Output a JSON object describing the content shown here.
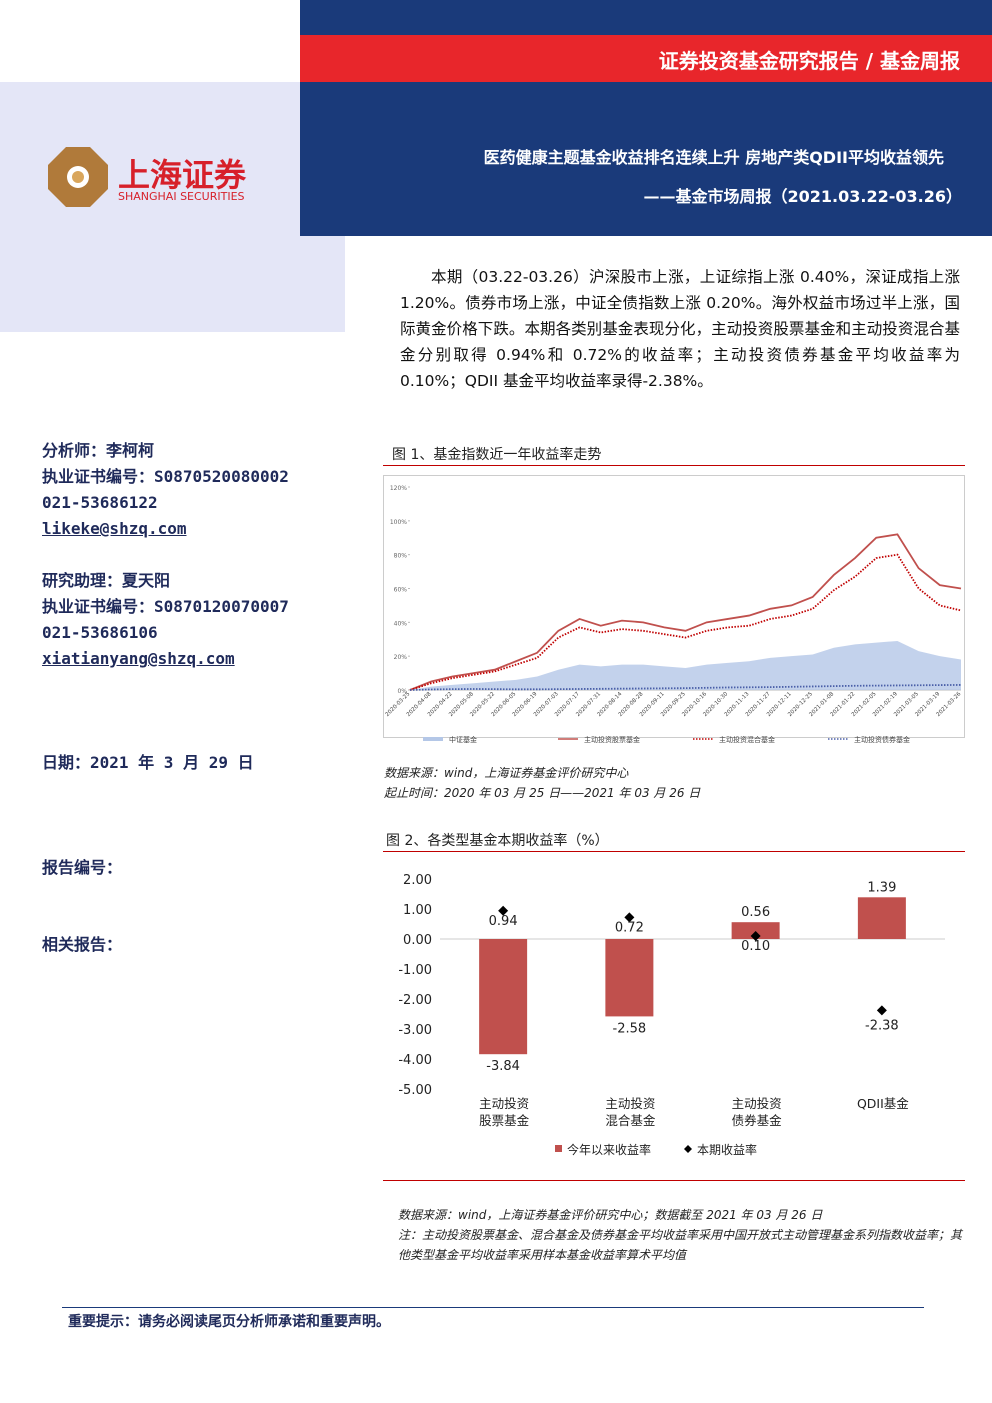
{
  "header": {
    "series_title": "证券投资基金研究报告 / 基金周报",
    "title": "医药健康主题基金收益排名连续上升 房地产类QDII平均收益领先",
    "subtitle": "——基金市场周报（2021.03.22-03.26）",
    "logo_cn": "上海证券",
    "logo_en": "SHANGHAI SECURITIES"
  },
  "sidebar": {
    "analyst": "分析师：李柯柯",
    "analyst_cert": "执业证书编号：S0870520080002",
    "analyst_phone": "021-53686122",
    "analyst_email": "likeke@shzq.com",
    "assistant": "研究助理：夏天阳",
    "assistant_cert": "执业证书编号：S0870120070007",
    "assistant_phone": "021-53686106",
    "assistant_email": "xiatianyang@shzq.com",
    "date": "日期：2021 年 3 月 29 日",
    "report_no": "报告编号：",
    "related": "相关报告："
  },
  "body": {
    "paragraph": "本期（03.22-03.26）沪深股市上涨，上证综指上涨 0.40%，深证成指上涨 1.20%。债券市场上涨，中证全债指数上涨 0.20%。海外权益市场过半上涨，国际黄金价格下跌。本期各类别基金表现分化，主动投资股票基金和主动投资混合基金分别取得 0.94%和 0.72%的收益率；主动投资债券基金平均收益率为 0.10%；QDII 基金平均收益率录得-2.38%。"
  },
  "chart_data": [
    {
      "type": "line",
      "title": "图 1、基金指数近一年收益率走势",
      "x": [
        "2020-03-25",
        "2020-04-08",
        "2020-04-22",
        "2020-05-08",
        "2020-05-22",
        "2020-06-05",
        "2020-06-19",
        "2020-07-03",
        "2020-07-17",
        "2020-07-31",
        "2020-08-14",
        "2020-08-28",
        "2020-09-11",
        "2020-09-25",
        "2020-10-16",
        "2020-10-30",
        "2020-11-13",
        "2020-11-27",
        "2020-12-11",
        "2020-12-25",
        "2021-01-08",
        "2021-01-22",
        "2021-02-05",
        "2021-02-19",
        "2021-03-05",
        "2021-03-19",
        "2021-03-26"
      ],
      "ylim": [
        0,
        120
      ],
      "yticks": [
        {
          "value": 0,
          "label": "0%"
        },
        {
          "value": 20,
          "label": "20%"
        },
        {
          "value": 40,
          "label": "40%"
        },
        {
          "value": 60,
          "label": "60%"
        },
        {
          "value": 80,
          "label": "80%"
        },
        {
          "value": 100,
          "label": "100%"
        },
        {
          "value": 120,
          "label": "120%"
        }
      ],
      "series": [
        {
          "name": "中证基金",
          "color": "#b4c7e7",
          "style": "area",
          "values": [
            0,
            2,
            3,
            4,
            5,
            6,
            8,
            12,
            15,
            14,
            15,
            15,
            14,
            13,
            15,
            16,
            17,
            19,
            20,
            21,
            25,
            27,
            28,
            29,
            23,
            20,
            18
          ]
        },
        {
          "name": "主动投资股票基金",
          "color": "#c0504d",
          "style": "solid",
          "values": [
            0,
            5,
            8,
            10,
            12,
            17,
            22,
            35,
            42,
            38,
            41,
            40,
            37,
            35,
            40,
            42,
            44,
            48,
            50,
            55,
            68,
            78,
            90,
            92,
            72,
            62,
            60
          ]
        },
        {
          "name": "主动投资混合基金",
          "color": "#c00000",
          "style": "dotted",
          "values": [
            0,
            4,
            7,
            9,
            11,
            15,
            19,
            31,
            37,
            34,
            36,
            35,
            33,
            31,
            35,
            37,
            38,
            42,
            44,
            48,
            59,
            67,
            78,
            80,
            60,
            50,
            47
          ]
        },
        {
          "name": "主动投资债券基金",
          "color": "#4a5fa8",
          "style": "dotted",
          "values": [
            0,
            0.3,
            0.5,
            0.6,
            0.5,
            0.4,
            0.4,
            0.5,
            0.6,
            0.7,
            0.8,
            0.9,
            1,
            1.1,
            1.3,
            1.5,
            1.6,
            1.7,
            1.9,
            2.1,
            2.3,
            2.5,
            2.6,
            2.7,
            2.8,
            2.9,
            3
          ]
        }
      ]
    },
    {
      "type": "bar",
      "title": "图 2、各类型基金本期收益率（%）",
      "categories": [
        "主动投资股票基金",
        "主动投资混合基金",
        "主动投资债券基金",
        "QDII基金"
      ],
      "ylim": [
        -5,
        2
      ],
      "yticks": [
        {
          "value": 2,
          "label": "2.00"
        },
        {
          "value": 1,
          "label": "1.00"
        },
        {
          "value": 0,
          "label": "0.00"
        },
        {
          "value": -1,
          "label": "-1.00"
        },
        {
          "value": -2,
          "label": "-2.00"
        },
        {
          "value": -3,
          "label": "-3.00"
        },
        {
          "value": -4,
          "label": "-4.00"
        },
        {
          "value": -5,
          "label": "-5.00"
        }
      ],
      "series": [
        {
          "name": "今年以来收益率",
          "color": "#c0504d",
          "style": "bar",
          "values": [
            -3.84,
            -2.58,
            0.56,
            1.39
          ],
          "value_labels": [
            "-3.84",
            "-2.58",
            "0.56",
            "1.39"
          ]
        },
        {
          "name": "本期收益率",
          "color": "#000000",
          "style": "point",
          "values": [
            0.94,
            0.72,
            0.1,
            -2.38
          ],
          "value_labels": [
            "0.94",
            "0.72",
            "0.10",
            "-2.38"
          ]
        }
      ]
    }
  ],
  "sources": {
    "fig1_source": "数据来源：wind，上海证券基金评价研究中心",
    "fig1_period": "起止时间：2020 年 03 月 25 日——2021 年 03 月 26 日",
    "fig2_source": "数据来源：wind，上海证券基金评价研究中心；数据截至 2021 年 03 月 26 日",
    "fig2_note": "注：主动投资股票基金、混合基金及债券基金平均收益率采用中国开放式主动管理基金系列指数收益率；其他类型基金平均收益率采用样本基金收益率算术平均值"
  },
  "footer": {
    "notice": "重要提示：请务必阅读尾页分析师承诺和重要声明。"
  }
}
